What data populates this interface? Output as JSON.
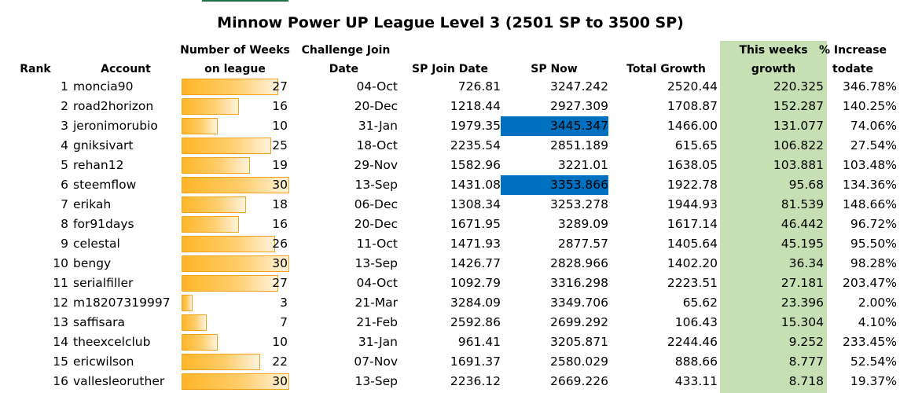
{
  "title": "Minnow Power UP League Level 3 (2501 SP to 3500 SP)",
  "colors": {
    "highlight": "#0070c0",
    "green_column": "#c6e0b4",
    "bar_fill": "#ffb628",
    "bar_border": "#f2a31b"
  },
  "headers": {
    "rank": "Rank",
    "account": "Account",
    "weeks_1": "Number of Weeks",
    "weeks_2": "on league",
    "challenge_1": "Challenge Join",
    "challenge_2": "Date",
    "sp_join": "SP Join Date",
    "sp_now": "SP Now",
    "total_growth": "Total Growth",
    "this_week_1": "This weeks",
    "this_week_2": "growth",
    "increase_1": "% Increase",
    "increase_2": "todate"
  },
  "weeks_scale_max": 30,
  "rows": [
    {
      "rank": "1",
      "account": "moncia90",
      "weeks": 27,
      "date": "04-Oct",
      "sp_join": "726.81",
      "sp_now": "3247.242",
      "highlight": false,
      "total_growth": "2520.44",
      "this_week": "220.325",
      "increase": "346.78%"
    },
    {
      "rank": "2",
      "account": "road2horizon",
      "weeks": 16,
      "date": "20-Dec",
      "sp_join": "1218.44",
      "sp_now": "2927.309",
      "highlight": false,
      "total_growth": "1708.87",
      "this_week": "152.287",
      "increase": "140.25%"
    },
    {
      "rank": "3",
      "account": "jeronimorubio",
      "weeks": 10,
      "date": "31-Jan",
      "sp_join": "1979.35",
      "sp_now": "3445.347",
      "highlight": true,
      "total_growth": "1466.00",
      "this_week": "131.077",
      "increase": "74.06%"
    },
    {
      "rank": "4",
      "account": "gniksivart",
      "weeks": 25,
      "date": "18-Oct",
      "sp_join": "2235.54",
      "sp_now": "2851.189",
      "highlight": false,
      "total_growth": "615.65",
      "this_week": "106.822",
      "increase": "27.54%"
    },
    {
      "rank": "5",
      "account": "rehan12",
      "weeks": 19,
      "date": "29-Nov",
      "sp_join": "1582.96",
      "sp_now": "3221.01",
      "highlight": false,
      "total_growth": "1638.05",
      "this_week": "103.881",
      "increase": "103.48%"
    },
    {
      "rank": "6",
      "account": "steemflow",
      "weeks": 30,
      "date": "13-Sep",
      "sp_join": "1431.08",
      "sp_now": "3353.866",
      "highlight": true,
      "total_growth": "1922.78",
      "this_week": "95.68",
      "increase": "134.36%"
    },
    {
      "rank": "7",
      "account": "erikah",
      "weeks": 18,
      "date": "06-Dec",
      "sp_join": "1308.34",
      "sp_now": "3253.278",
      "highlight": false,
      "total_growth": "1944.93",
      "this_week": "81.539",
      "increase": "148.66%"
    },
    {
      "rank": "8",
      "account": "for91days",
      "weeks": 16,
      "date": "20-Dec",
      "sp_join": "1671.95",
      "sp_now": "3289.09",
      "highlight": false,
      "total_growth": "1617.14",
      "this_week": "46.442",
      "increase": "96.72%"
    },
    {
      "rank": "9",
      "account": "celestal",
      "weeks": 26,
      "date": "11-Oct",
      "sp_join": "1471.93",
      "sp_now": "2877.57",
      "highlight": false,
      "total_growth": "1405.64",
      "this_week": "45.195",
      "increase": "95.50%"
    },
    {
      "rank": "10",
      "account": "bengy",
      "weeks": 30,
      "date": "13-Sep",
      "sp_join": "1426.77",
      "sp_now": "2828.966",
      "highlight": false,
      "total_growth": "1402.20",
      "this_week": "36.34",
      "increase": "98.28%"
    },
    {
      "rank": "11",
      "account": "serialfiller",
      "weeks": 27,
      "date": "04-Oct",
      "sp_join": "1092.79",
      "sp_now": "3316.298",
      "highlight": false,
      "total_growth": "2223.51",
      "this_week": "27.181",
      "increase": "203.47%"
    },
    {
      "rank": "12",
      "account": "m18207319997",
      "weeks": 3,
      "date": "21-Mar",
      "sp_join": "3284.09",
      "sp_now": "3349.706",
      "highlight": false,
      "total_growth": "65.62",
      "this_week": "23.396",
      "increase": "2.00%"
    },
    {
      "rank": "13",
      "account": "saffisara",
      "weeks": 7,
      "date": "21-Feb",
      "sp_join": "2592.86",
      "sp_now": "2699.292",
      "highlight": false,
      "total_growth": "106.43",
      "this_week": "15.304",
      "increase": "4.10%"
    },
    {
      "rank": "14",
      "account": "theexcelclub",
      "weeks": 10,
      "date": "31-Jan",
      "sp_join": "961.41",
      "sp_now": "3205.871",
      "highlight": false,
      "total_growth": "2244.46",
      "this_week": "9.252",
      "increase": "233.45%"
    },
    {
      "rank": "15",
      "account": "ericwilson",
      "weeks": 22,
      "date": "07-Nov",
      "sp_join": "1691.37",
      "sp_now": "2580.029",
      "highlight": false,
      "total_growth": "888.66",
      "this_week": "8.777",
      "increase": "52.54%"
    },
    {
      "rank": "16",
      "account": "vallesleoruther",
      "weeks": 30,
      "date": "13-Sep",
      "sp_join": "2236.12",
      "sp_now": "2669.226",
      "highlight": false,
      "total_growth": "433.11",
      "this_week": "8.718",
      "increase": "19.37%"
    }
  ]
}
